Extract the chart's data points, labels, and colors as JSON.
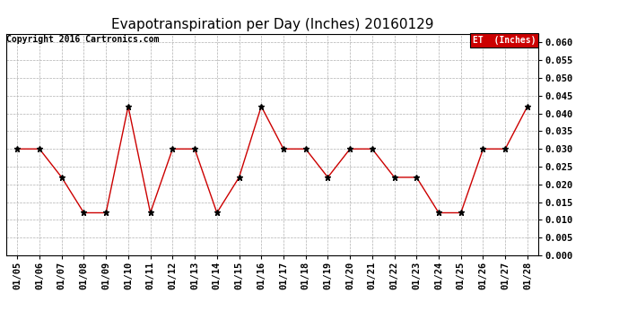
{
  "title": "Evapotranspiration per Day (Inches) 20160129",
  "copyright": "Copyright 2016 Cartronics.com",
  "legend_label": "ET  (Inches)",
  "x_labels": [
    "01/05",
    "01/06",
    "01/07",
    "01/08",
    "01/09",
    "01/10",
    "01/11",
    "01/12",
    "01/13",
    "01/14",
    "01/15",
    "01/16",
    "01/17",
    "01/18",
    "01/19",
    "01/20",
    "01/21",
    "01/22",
    "01/23",
    "01/24",
    "01/25",
    "01/26",
    "01/27",
    "01/28"
  ],
  "y_values": [
    0.03,
    0.03,
    0.022,
    0.012,
    0.012,
    0.042,
    0.012,
    0.03,
    0.03,
    0.012,
    0.022,
    0.042,
    0.03,
    0.03,
    0.022,
    0.03,
    0.03,
    0.022,
    0.022,
    0.012,
    0.012,
    0.03,
    0.03,
    0.042
  ],
  "line_color": "#cc0000",
  "marker_color": "#000000",
  "background_color": "#ffffff",
  "grid_color": "#b0b0b0",
  "ylim": [
    0.0,
    0.0625
  ],
  "yticks": [
    0.0,
    0.005,
    0.01,
    0.015,
    0.02,
    0.025,
    0.03,
    0.035,
    0.04,
    0.045,
    0.05,
    0.055,
    0.06
  ],
  "legend_bg": "#cc0000",
  "legend_text_color": "#ffffff",
  "title_fontsize": 11,
  "copyright_fontsize": 7,
  "tick_fontsize": 7.5,
  "ylabel_fontsize": 8
}
